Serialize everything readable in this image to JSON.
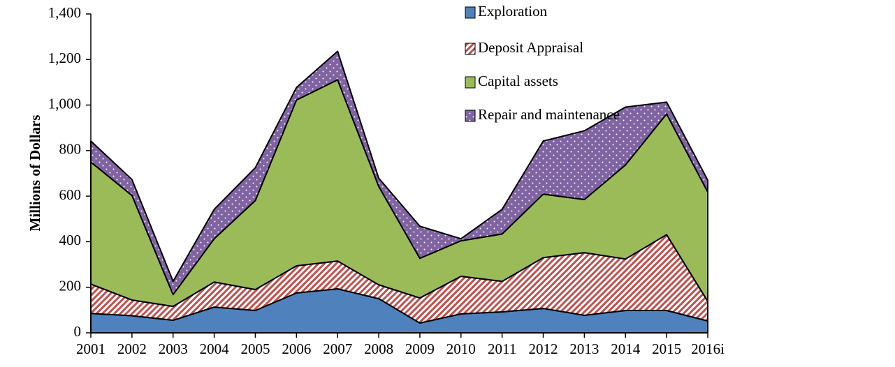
{
  "chart_data": {
    "type": "stacked_area",
    "y_label": "Millions of Dollars",
    "categories": [
      "2001",
      "2002",
      "2003",
      "2004",
      "2005",
      "2006",
      "2007",
      "2008",
      "2009",
      "2010",
      "2011",
      "2012",
      "2013",
      "2014",
      "2015",
      "2016i"
    ],
    "series": [
      {
        "name": "Exploration",
        "color": "#4f81bd",
        "pattern": "solid",
        "values": [
          85,
          75,
          55,
          113,
          98,
          175,
          193,
          150,
          43,
          83,
          92,
          107,
          77,
          98,
          98,
          52
        ]
      },
      {
        "name": "Deposit Appraisal",
        "color": "#c0504d",
        "pattern": "hatch",
        "values": [
          129,
          69,
          61,
          110,
          92,
          119,
          122,
          61,
          110,
          165,
          134,
          223,
          275,
          226,
          333,
          86
        ]
      },
      {
        "name": "Capital assets",
        "color": "#9bbb59",
        "pattern": "solid",
        "values": [
          536,
          459,
          52,
          190,
          391,
          728,
          796,
          432,
          174,
          156,
          208,
          279,
          233,
          413,
          530,
          480
        ]
      },
      {
        "name": "Repair and maintenance",
        "color": "#8064a2",
        "pattern": "dots",
        "values": [
          92,
          70,
          58,
          129,
          144,
          55,
          125,
          36,
          141,
          9,
          108,
          233,
          302,
          254,
          52,
          52
        ]
      }
    ],
    "ylim": [
      0,
      1400
    ],
    "yticks": [
      0,
      200,
      400,
      600,
      800,
      {
        "value": 1000,
        "label": "1,000"
      },
      {
        "value": 1200,
        "label": "1,200"
      },
      {
        "value": 1400,
        "label": "1,400"
      }
    ],
    "legend": "top"
  }
}
